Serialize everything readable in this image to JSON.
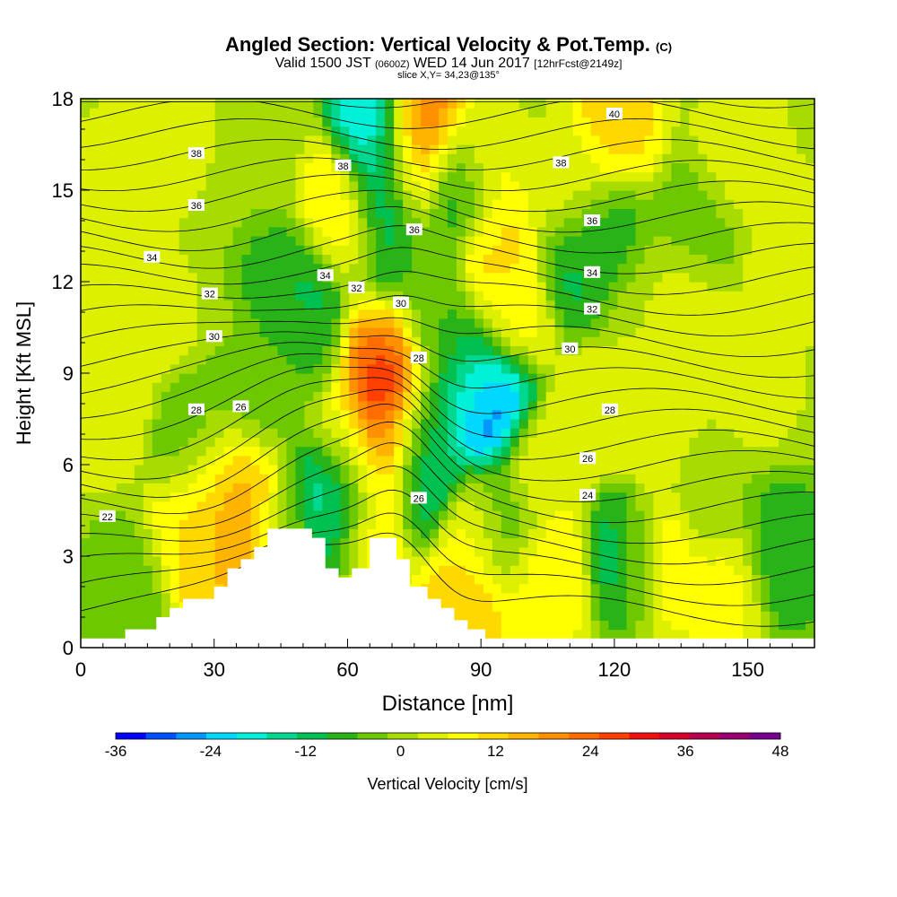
{
  "header": {
    "title_main": "Angled Section: Vertical Velocity & Pot.Temp.",
    "title_unit": "(C)",
    "subtitle_pre": "Valid 1500 JST",
    "subtitle_utc": "(0600Z)",
    "subtitle_date": "WED 14 Jun 2017",
    "subtitle_fcst": "[12hrFcst@2149z]",
    "slice": "slice X,Y= 34,23@135°"
  },
  "chart_data": {
    "type": "heatmap",
    "title": "Angled Section: Vertical Velocity & Pot.Temp. (C)",
    "xlabel": "Distance [nm]",
    "ylabel": "Height [Kft MSL]",
    "xlim": [
      0,
      165
    ],
    "ylim": [
      0,
      18
    ],
    "xticks": [
      0,
      30,
      60,
      90,
      120,
      150
    ],
    "yticks": [
      0,
      3,
      6,
      9,
      12,
      15,
      18
    ],
    "colorbar": {
      "label": "Vertical Velocity [cm/s]",
      "ticks": [
        -36,
        -24,
        -12,
        0,
        12,
        24,
        36,
        48
      ],
      "range": [
        -36,
        48
      ],
      "step": 4,
      "colors": [
        "#0000ff",
        "#0050ff",
        "#0098ff",
        "#00d8ff",
        "#00f0d8",
        "#00d890",
        "#00c050",
        "#28b418",
        "#6ec800",
        "#a8dc00",
        "#dcf000",
        "#ffff00",
        "#ffd800",
        "#ffb400",
        "#ff9000",
        "#ff6c00",
        "#ff4000",
        "#f01010",
        "#d80028",
        "#b80050",
        "#980070",
        "#780090"
      ]
    },
    "terrain_kft": [
      [
        0,
        0.3
      ],
      [
        10,
        0.3
      ],
      [
        10,
        0.6
      ],
      [
        17,
        0.6
      ],
      [
        17,
        1.0
      ],
      [
        20,
        1.0
      ],
      [
        20,
        1.3
      ],
      [
        23,
        1.3
      ],
      [
        23,
        1.6
      ],
      [
        30,
        1.6
      ],
      [
        30,
        2.0
      ],
      [
        33,
        2.0
      ],
      [
        33,
        2.6
      ],
      [
        36,
        2.6
      ],
      [
        36,
        2.9
      ],
      [
        39,
        2.9
      ],
      [
        39,
        3.3
      ],
      [
        42,
        3.3
      ],
      [
        42,
        3.9
      ],
      [
        52,
        3.9
      ],
      [
        52,
        3.6
      ],
      [
        55,
        3.6
      ],
      [
        55,
        2.6
      ],
      [
        58,
        2.6
      ],
      [
        58,
        2.3
      ],
      [
        61,
        2.3
      ],
      [
        61,
        2.6
      ],
      [
        65,
        2.6
      ],
      [
        65,
        3.6
      ],
      [
        71,
        3.6
      ],
      [
        71,
        2.9
      ],
      [
        74,
        2.9
      ],
      [
        74,
        2.0
      ],
      [
        78,
        2.0
      ],
      [
        78,
        1.6
      ],
      [
        81,
        1.6
      ],
      [
        81,
        1.3
      ],
      [
        84,
        1.3
      ],
      [
        84,
        0.9
      ],
      [
        87,
        0.9
      ],
      [
        87,
        0.6
      ],
      [
        91,
        0.6
      ],
      [
        91,
        0.3
      ],
      [
        165,
        0.3
      ]
    ],
    "contour_labels": [
      {
        "text": "38",
        "x": 26,
        "y": 16.2
      },
      {
        "text": "38",
        "x": 59,
        "y": 15.8
      },
      {
        "text": "38",
        "x": 108,
        "y": 15.9
      },
      {
        "text": "40",
        "x": 120,
        "y": 17.5
      },
      {
        "text": "36",
        "x": 26,
        "y": 14.5
      },
      {
        "text": "36",
        "x": 75,
        "y": 13.7
      },
      {
        "text": "36",
        "x": 115,
        "y": 14.0
      },
      {
        "text": "34",
        "x": 16,
        "y": 12.8
      },
      {
        "text": "34",
        "x": 55,
        "y": 12.2
      },
      {
        "text": "34",
        "x": 115,
        "y": 12.3
      },
      {
        "text": "32",
        "x": 29,
        "y": 11.6
      },
      {
        "text": "32",
        "x": 62,
        "y": 11.8
      },
      {
        "text": "32",
        "x": 115,
        "y": 11.1
      },
      {
        "text": "30",
        "x": 30,
        "y": 10.2
      },
      {
        "text": "30",
        "x": 72,
        "y": 11.3
      },
      {
        "text": "30",
        "x": 110,
        "y": 9.8
      },
      {
        "text": "28",
        "x": 26,
        "y": 7.8
      },
      {
        "text": "28",
        "x": 76,
        "y": 9.5
      },
      {
        "text": "28",
        "x": 119,
        "y": 7.8
      },
      {
        "text": "26",
        "x": 36,
        "y": 7.9
      },
      {
        "text": "26",
        "x": 76,
        "y": 4.9
      },
      {
        "text": "26",
        "x": 114,
        "y": 6.2
      },
      {
        "text": "24",
        "x": 114,
        "y": 5.0
      },
      {
        "text": "22",
        "x": 6,
        "y": 4.3
      }
    ],
    "velocity_cells": [
      {
        "x": 5,
        "y": 8,
        "v": 6
      },
      {
        "x": 9,
        "y": 15,
        "v": 6
      },
      {
        "x": 18,
        "y": 17,
        "v": 6
      },
      {
        "x": 15,
        "y": 11,
        "v": 4
      },
      {
        "x": 25,
        "y": 4,
        "v": 10
      },
      {
        "x": 30,
        "y": 3,
        "v": 14
      },
      {
        "x": 34,
        "y": 4.2,
        "v": 22
      },
      {
        "x": 37,
        "y": 5,
        "v": 16
      },
      {
        "x": 30,
        "y": 5.5,
        "v": 10
      },
      {
        "x": 26,
        "y": 6.5,
        "v": -6
      },
      {
        "x": 40,
        "y": 8,
        "v": -4
      },
      {
        "x": 45,
        "y": 4,
        "v": -2
      },
      {
        "x": 50,
        "y": 10,
        "v": -6
      },
      {
        "x": 56,
        "y": 5,
        "v": -20
      },
      {
        "x": 52,
        "y": 11.5,
        "v": -14
      },
      {
        "x": 46,
        "y": 12.5,
        "v": -8
      },
      {
        "x": 57,
        "y": 14.5,
        "v": 12
      },
      {
        "x": 60,
        "y": 13.5,
        "v": 10
      },
      {
        "x": 60,
        "y": 7,
        "v": 6
      },
      {
        "x": 62,
        "y": 5,
        "v": -10
      },
      {
        "x": 69,
        "y": 8.5,
        "v": 40
      },
      {
        "x": 68,
        "y": 6.5,
        "v": 28
      },
      {
        "x": 67,
        "y": 10,
        "v": 20
      },
      {
        "x": 66,
        "y": 4.5,
        "v": 16
      },
      {
        "x": 68,
        "y": 15,
        "v": -20
      },
      {
        "x": 68,
        "y": 13,
        "v": -14
      },
      {
        "x": 66,
        "y": 17,
        "v": -24
      },
      {
        "x": 76,
        "y": 17,
        "v": 24
      },
      {
        "x": 75,
        "y": 15.5,
        "v": 14
      },
      {
        "x": 76,
        "y": 12.5,
        "v": -4
      },
      {
        "x": 76,
        "y": 5.5,
        "v": -18
      },
      {
        "x": 76,
        "y": 7.5,
        "v": -12
      },
      {
        "x": 80,
        "y": 10.5,
        "v": -6
      },
      {
        "x": 85,
        "y": 15,
        "v": -16
      },
      {
        "x": 90,
        "y": 15.5,
        "v": 10
      },
      {
        "x": 93,
        "y": 13,
        "v": 12
      },
      {
        "x": 92,
        "y": 8,
        "v": -32
      },
      {
        "x": 88,
        "y": 9,
        "v": -14
      },
      {
        "x": 97,
        "y": 11,
        "v": 8
      },
      {
        "x": 88,
        "y": 3.5,
        "v": 8
      },
      {
        "x": 86,
        "y": 1.5,
        "v": 14
      },
      {
        "x": 95,
        "y": 4,
        "v": -6
      },
      {
        "x": 103,
        "y": 6,
        "v": 6
      },
      {
        "x": 105,
        "y": 2.5,
        "v": 10
      },
      {
        "x": 110,
        "y": 15,
        "v": 4
      },
      {
        "x": 113,
        "y": 12.5,
        "v": -12
      },
      {
        "x": 118,
        "y": 13,
        "v": -8
      },
      {
        "x": 120,
        "y": 17.5,
        "v": 12
      },
      {
        "x": 118,
        "y": 8,
        "v": 6
      },
      {
        "x": 124,
        "y": 3,
        "v": -16
      },
      {
        "x": 129,
        "y": 3,
        "v": 14
      },
      {
        "x": 130,
        "y": 7.5,
        "v": 6
      },
      {
        "x": 136,
        "y": 11,
        "v": 4
      },
      {
        "x": 142,
        "y": 5,
        "v": -2
      },
      {
        "x": 148,
        "y": 16,
        "v": 6
      },
      {
        "x": 150,
        "y": 9,
        "v": 6
      },
      {
        "x": 158,
        "y": 3,
        "v": -10
      },
      {
        "x": 160,
        "y": 13,
        "v": 6
      },
      {
        "x": 145,
        "y": 2,
        "v": 8
      },
      {
        "x": 10,
        "y": 2,
        "v": -4
      },
      {
        "x": 5,
        "y": 12,
        "v": 4
      },
      {
        "x": 140,
        "y": 14,
        "v": -4
      },
      {
        "x": 125,
        "y": 11,
        "v": 2
      },
      {
        "x": 100,
        "y": 17.5,
        "v": 2
      },
      {
        "x": 42,
        "y": 16,
        "v": 0
      }
    ]
  }
}
